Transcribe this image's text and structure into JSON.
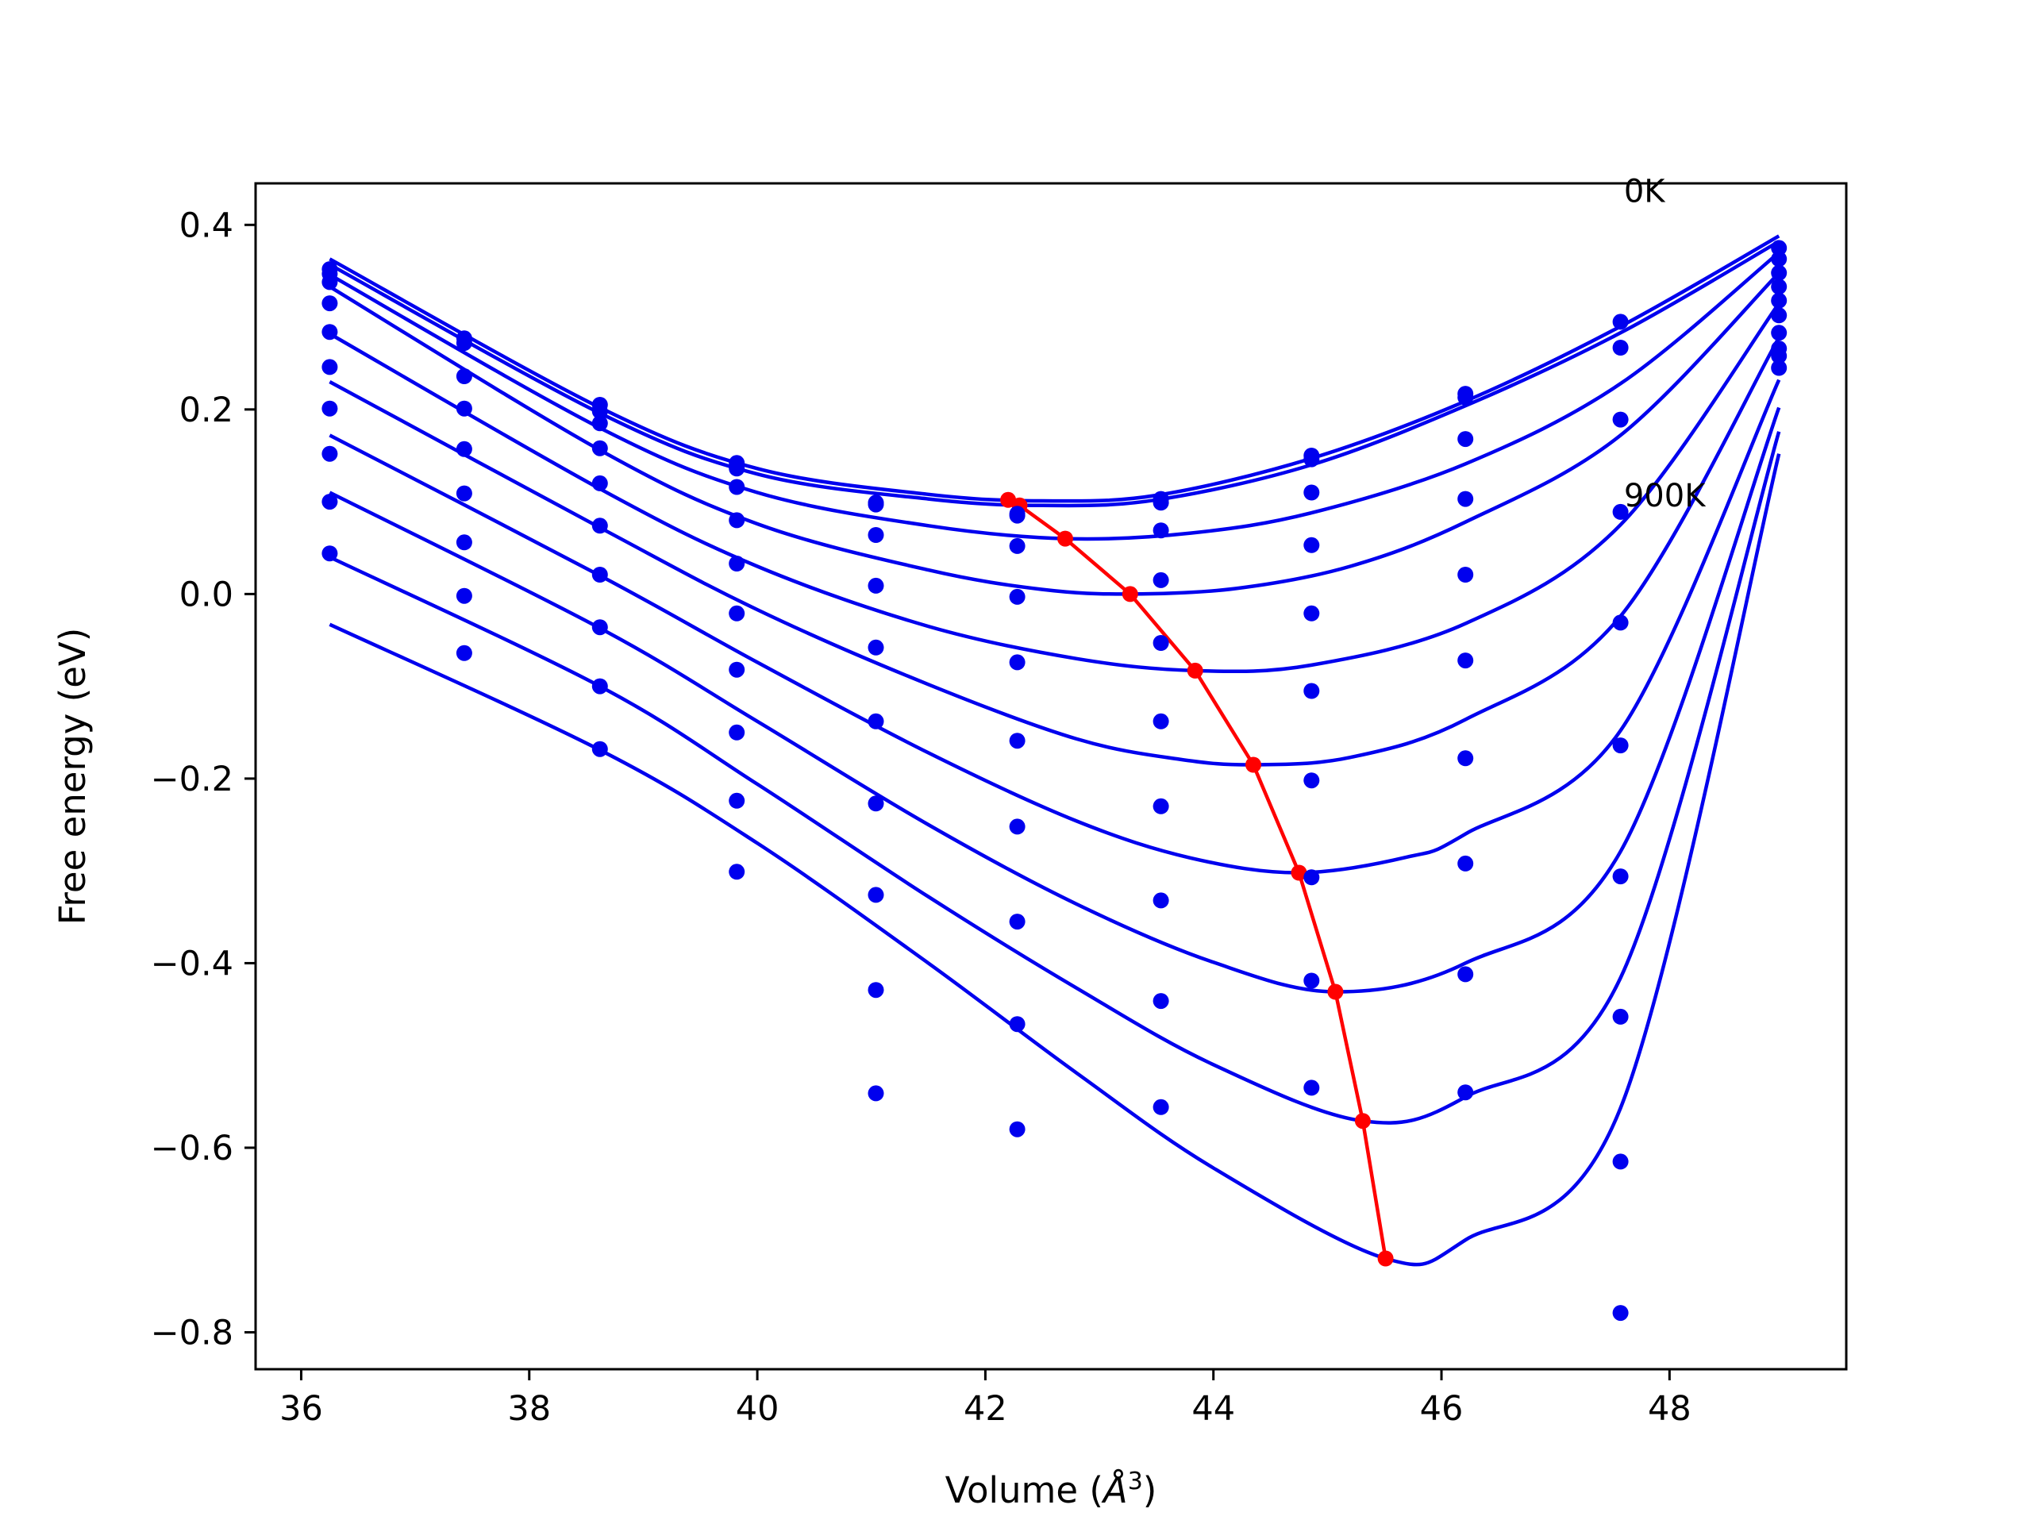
{
  "chart_data": {
    "type": "line",
    "title": "",
    "xlabel": "Volume (Å³)",
    "xlabel_base": "Volume (",
    "xlabel_sym": "Å",
    "xlabel_exp": "3",
    "xlabel_close": ")",
    "ylabel": "Free energy (eV)",
    "xlim": [
      35.6,
      49.55
    ],
    "ylim": [
      -0.84,
      0.445
    ],
    "xticks": [
      36,
      38,
      40,
      42,
      44,
      46,
      48
    ],
    "yticks": [
      -0.8,
      -0.6,
      -0.4,
      -0.2,
      0.0,
      0.2,
      0.4
    ],
    "xtick_labels": [
      "36",
      "38",
      "40",
      "42",
      "44",
      "46",
      "48"
    ],
    "ytick_labels": [
      "−0.8",
      "−0.6",
      "−0.4",
      "−0.2",
      "0.0",
      "0.2",
      "0.4"
    ],
    "grid": false,
    "legend": "none",
    "colors": {
      "fit_curves": "#0000ee",
      "data_points": "#0000ee",
      "equilibrium": "#ff0000",
      "frame": "#000000"
    },
    "annotations": [
      {
        "text": "0K",
        "x": 47.6,
        "y": 0.425
      },
      {
        "text": "900K",
        "x": 47.6,
        "y": 0.095
      }
    ],
    "volumes": [
      36.25,
      37.43,
      38.62,
      39.82,
      41.04,
      42.28,
      43.54,
      44.86,
      46.21,
      47.57,
      48.96
    ],
    "series": [
      {
        "points": [
          0.352,
          0.277,
          0.205,
          0.142,
          0.099,
          0.087,
          0.103,
          0.15,
          0.217,
          0.295,
          0.375
        ],
        "curve": [
          [
            36.25,
            0.363
          ],
          [
            38.62,
            0.202
          ],
          [
            40.0,
            0.136
          ],
          [
            41.5,
            0.108
          ],
          [
            42.5,
            0.101
          ],
          [
            43.5,
            0.107
          ],
          [
            44.86,
            0.147
          ],
          [
            46.21,
            0.209
          ],
          [
            47.57,
            0.29
          ],
          [
            48.96,
            0.388
          ]
        ],
        "minimum": [
          42.2,
          0.102
        ]
      },
      {
        "points": [
          0.347,
          0.272,
          0.198,
          0.136,
          0.097,
          0.085,
          0.099,
          0.146,
          0.213,
          0.267,
          0.363
        ],
        "curve": [
          [
            36.25,
            0.357
          ],
          [
            38.62,
            0.196
          ],
          [
            40.0,
            0.13
          ],
          [
            41.5,
            0.103
          ],
          [
            42.5,
            0.096
          ],
          [
            43.5,
            0.102
          ],
          [
            44.86,
            0.14
          ],
          [
            46.21,
            0.204
          ],
          [
            47.57,
            0.283
          ],
          [
            48.96,
            0.382
          ]
        ],
        "minimum": [
          42.3,
          0.096
        ]
      },
      {
        "points": [
          0.338,
          0.236,
          0.185,
          0.116,
          0.064,
          0.052,
          0.069,
          0.11,
          0.168,
          0.189,
          0.348
        ],
        "curve": [
          [
            36.25,
            0.346
          ],
          [
            38.62,
            0.18
          ],
          [
            40.0,
            0.11
          ],
          [
            41.5,
            0.074
          ],
          [
            42.7,
            0.06
          ],
          [
            43.8,
            0.066
          ],
          [
            44.86,
            0.088
          ],
          [
            46.21,
            0.141
          ],
          [
            47.57,
            0.228
          ],
          [
            48.96,
            0.37
          ]
        ],
        "minimum": [
          42.7,
          0.06
        ]
      },
      {
        "points": [
          0.315,
          0.201,
          0.158,
          0.08,
          0.009,
          -0.003,
          0.015,
          0.053,
          0.103,
          0.089,
          0.333
        ],
        "curve": [
          [
            36.25,
            0.333
          ],
          [
            38.62,
            0.156
          ],
          [
            40.0,
            0.076
          ],
          [
            41.5,
            0.026
          ],
          [
            42.5,
            0.005
          ],
          [
            43.27,
            0.0
          ],
          [
            44.2,
            0.006
          ],
          [
            45.2,
            0.03
          ],
          [
            46.21,
            0.078
          ],
          [
            47.57,
            0.172
          ],
          [
            48.96,
            0.348
          ]
        ],
        "minimum": [
          43.27,
          0.0
        ]
      },
      {
        "points": [
          0.284,
          0.157,
          0.12,
          0.033,
          -0.058,
          -0.074,
          -0.053,
          -0.021,
          0.021,
          -0.031,
          0.318
        ],
        "curve": [
          [
            36.25,
            0.282
          ],
          [
            38.62,
            0.114
          ],
          [
            40.0,
            0.03
          ],
          [
            41.5,
            -0.035
          ],
          [
            42.8,
            -0.07
          ],
          [
            43.84,
            -0.083
          ],
          [
            44.86,
            -0.077
          ],
          [
            46.21,
            -0.032
          ],
          [
            47.57,
            0.075
          ],
          [
            48.96,
            0.315
          ]
        ],
        "minimum": [
          43.84,
          -0.083
        ]
      },
      {
        "points": [
          0.246,
          0.109,
          0.074,
          -0.021,
          -0.138,
          -0.159,
          -0.138,
          -0.105,
          -0.072,
          -0.164,
          0.302
        ],
        "curve": [
          [
            36.25,
            0.23
          ],
          [
            38.62,
            0.072
          ],
          [
            40.0,
            -0.017
          ],
          [
            41.5,
            -0.098
          ],
          [
            42.8,
            -0.157
          ],
          [
            43.7,
            -0.179
          ],
          [
            44.35,
            -0.185
          ],
          [
            45.2,
            -0.177
          ],
          [
            46.21,
            -0.136
          ],
          [
            47.57,
            -0.024
          ],
          [
            48.96,
            0.278
          ]
        ],
        "minimum": [
          44.35,
          -0.185
        ]
      },
      {
        "points": [
          0.201,
          0.056,
          0.021,
          -0.082,
          -0.227,
          -0.252,
          -0.23,
          -0.202,
          -0.178,
          -0.306,
          0.283
        ],
        "curve": [
          [
            36.25,
            0.172
          ],
          [
            38.62,
            0.02
          ],
          [
            40.0,
            -0.074
          ],
          [
            41.5,
            -0.172
          ],
          [
            42.8,
            -0.246
          ],
          [
            43.8,
            -0.286
          ],
          [
            44.75,
            -0.302
          ],
          [
            45.7,
            -0.285
          ],
          [
            46.21,
            -0.26
          ],
          [
            47.57,
            -0.148
          ],
          [
            48.96,
            0.232
          ]
        ],
        "minimum": [
          44.75,
          -0.302
        ]
      },
      {
        "points": [
          0.152,
          -0.002,
          -0.036,
          -0.15,
          -0.326,
          -0.355,
          -0.332,
          -0.307,
          -0.292,
          -0.458,
          0.266
        ],
        "curve": [
          [
            36.25,
            0.11
          ],
          [
            38.62,
            -0.037
          ],
          [
            40.0,
            -0.138
          ],
          [
            41.5,
            -0.25
          ],
          [
            42.8,
            -0.336
          ],
          [
            44.0,
            -0.399
          ],
          [
            45.07,
            -0.431
          ],
          [
            46.21,
            -0.4
          ],
          [
            47.57,
            -0.279
          ],
          [
            48.96,
            0.202
          ]
        ],
        "minimum": [
          45.07,
          -0.431
        ]
      },
      {
        "points": [
          0.1,
          -0.064,
          -0.1,
          -0.224,
          -0.429,
          -0.466,
          -0.441,
          -0.419,
          -0.412,
          -0.615,
          0.258
        ],
        "curve": [
          [
            36.25,
            0.04
          ],
          [
            38.62,
            -0.1
          ],
          [
            40.0,
            -0.206
          ],
          [
            41.5,
            -0.328
          ],
          [
            42.8,
            -0.427
          ],
          [
            44.0,
            -0.51
          ],
          [
            45.31,
            -0.571
          ],
          [
            46.21,
            -0.545
          ],
          [
            47.57,
            -0.416
          ],
          [
            48.96,
            0.176
          ]
        ],
        "minimum": [
          45.31,
          -0.571
        ]
      },
      {
        "points": [
          0.044,
          null,
          -0.168,
          -0.301,
          -0.541,
          -0.58,
          -0.556,
          -0.535,
          -0.54,
          -0.779,
          0.245
        ],
        "curve": [
          [
            36.25,
            -0.033
          ],
          [
            38.62,
            -0.169
          ],
          [
            40.0,
            -0.27
          ],
          [
            41.5,
            -0.4
          ],
          [
            42.8,
            -0.519
          ],
          [
            44.0,
            -0.622
          ],
          [
            45.51,
            -0.72
          ],
          [
            46.21,
            -0.7
          ],
          [
            47.57,
            -0.557
          ],
          [
            48.96,
            0.152
          ]
        ],
        "minimum": [
          45.51,
          -0.72
        ]
      }
    ]
  }
}
